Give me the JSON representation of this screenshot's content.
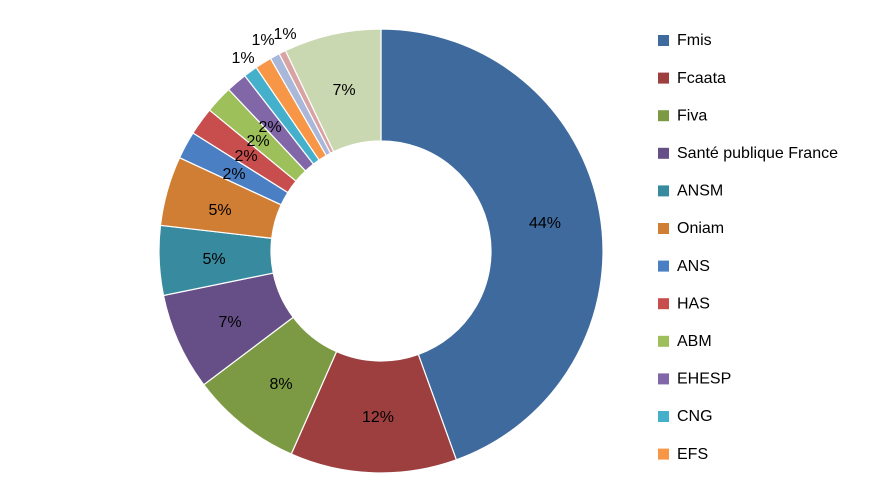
{
  "chart_data": {
    "type": "pie",
    "variant": "donut",
    "legend_position": "right",
    "slices": [
      {
        "label": "Fmis",
        "value": 44,
        "display": "44%",
        "color": "#3F6A9E"
      },
      {
        "label": "Fcaata",
        "value": 12,
        "display": "12%",
        "color": "#9E3F3F"
      },
      {
        "label": "Fiva",
        "value": 8,
        "display": "8%",
        "color": "#7C9A44"
      },
      {
        "label": "Santé publique France",
        "value": 7,
        "display": "7%",
        "color": "#664F86"
      },
      {
        "label": "ANSM",
        "value": 5,
        "display": "5%",
        "color": "#388A9F"
      },
      {
        "label": "Oniam",
        "value": 5,
        "display": "5%",
        "color": "#D17E35"
      },
      {
        "label": "ANS",
        "value": 2,
        "display": "2%",
        "color": "#4A7FC4"
      },
      {
        "label": "HAS",
        "value": 2,
        "display": "2%",
        "color": "#C84D4D"
      },
      {
        "label": "ABM",
        "value": 2,
        "display": "2%",
        "color": "#9DC05A"
      },
      {
        "label": "EHESP",
        "value": 1.5,
        "display": "2%",
        "color": "#8167A8"
      },
      {
        "label": "CNG",
        "value": 1,
        "display": "1%",
        "color": "#45B0CB"
      },
      {
        "label": "EFS",
        "value": 1.2,
        "display": "1%",
        "color": "#F79646"
      },
      {
        "label": "",
        "value": 0.7,
        "display": "1%",
        "color": "#A9B8DA"
      },
      {
        "label": "",
        "value": 0.5,
        "display": "1%",
        "color": "#D9A3A3"
      },
      {
        "label": "",
        "value": 7,
        "display": "7%",
        "color": "#C9D8B0"
      }
    ]
  }
}
